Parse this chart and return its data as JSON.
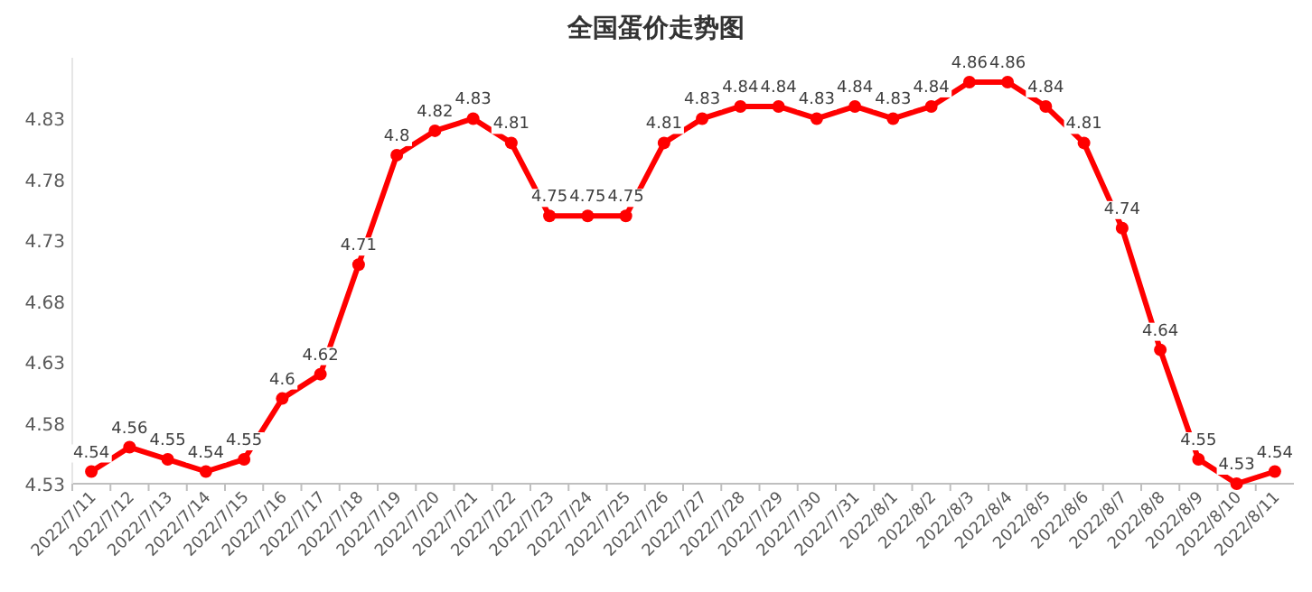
{
  "chart_data": {
    "type": "line",
    "title": "全国蛋价走势图",
    "categories": [
      "2022/7/11",
      "2022/7/12",
      "2022/7/13",
      "2022/7/14",
      "2022/7/15",
      "2022/7/16",
      "2022/7/17",
      "2022/7/18",
      "2022/7/19",
      "2022/7/20",
      "2022/7/21",
      "2022/7/22",
      "2022/7/23",
      "2022/7/24",
      "2022/7/25",
      "2022/7/26",
      "2022/7/27",
      "2022/7/28",
      "2022/7/29",
      "2022/7/30",
      "2022/7/31",
      "2022/8/1",
      "2022/8/2",
      "2022/8/3",
      "2022/8/4",
      "2022/8/5",
      "2022/8/6",
      "2022/8/7",
      "2022/8/8",
      "2022/8/9",
      "2022/8/10",
      "2022/8/11"
    ],
    "series": [
      {
        "color": "#ff0000",
        "values": [
          4.54,
          4.56,
          4.55,
          4.54,
          4.55,
          4.6,
          4.62,
          4.71,
          4.8,
          4.82,
          4.83,
          4.81,
          4.75,
          4.75,
          4.75,
          4.81,
          4.83,
          4.84,
          4.84,
          4.83,
          4.84,
          4.83,
          4.84,
          4.86,
          4.86,
          4.84,
          4.81,
          4.74,
          4.64,
          4.55,
          4.53,
          4.54
        ]
      }
    ],
    "ylim": [
      4.53,
      4.88
    ],
    "yticks": [
      4.53,
      4.58,
      4.63,
      4.68,
      4.73,
      4.78,
      4.83
    ],
    "data_labels": true,
    "marker": "circle",
    "line_style": "solid",
    "grid": false
  }
}
